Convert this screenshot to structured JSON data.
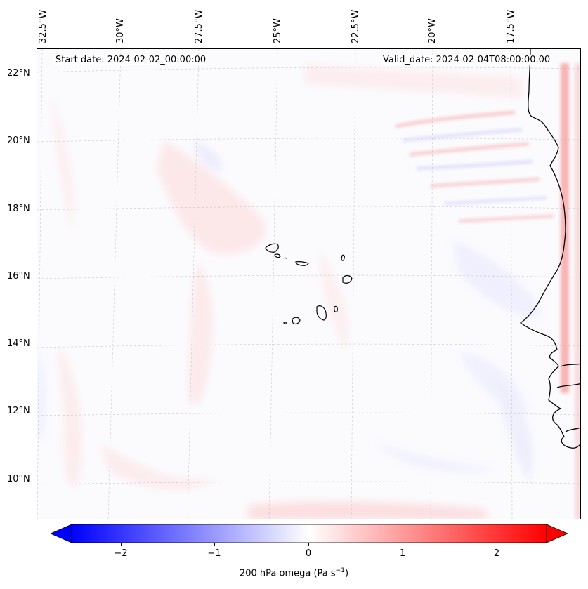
{
  "map": {
    "start_date": "Start date: 2024-02-02_00:00:00",
    "valid_date": "Valid_date: 2024-02-04T08:00:00.00",
    "lon_labels": [
      "32.5°W",
      "30°W",
      "27.5°W",
      "25°W",
      "22.5°W",
      "20°W",
      "17.5°W"
    ],
    "lat_labels": [
      "22°N",
      "20°N",
      "18°N",
      "16°N",
      "14°N",
      "12°N",
      "10°N"
    ],
    "region": "Cabo Verde and West African coast (Senegal)"
  },
  "colorbar": {
    "ticks": [
      "−2",
      "−1",
      "0",
      "1",
      "2"
    ],
    "tick_values": [
      -2,
      -1,
      0,
      1,
      2
    ],
    "range": [
      -2.5,
      2.5
    ],
    "label_main": "200 hPa omega (Pa s",
    "label_sup": "−1",
    "label_end": ")",
    "colormap": "bwr",
    "low_color": "#0000ff",
    "mid_color": "#ffffff",
    "high_color": "#ff0000"
  }
}
